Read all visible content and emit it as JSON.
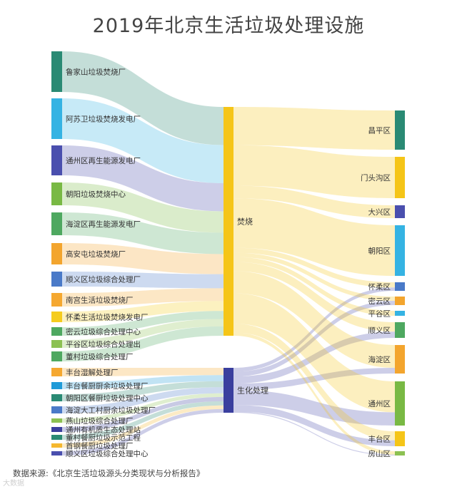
{
  "title": "2019年北京生活垃圾处理设施",
  "source": "数据来源:《北京生活垃圾源头分类现状与分析报告》",
  "watermark": "大数据",
  "chart_data": {
    "type": "sankey",
    "sources": [
      {
        "name": "鲁家山垃圾焚烧厂",
        "color": "#2a8a74"
      },
      {
        "name": "阿苏卫垃圾焚烧发电厂",
        "color": "#35b3e3"
      },
      {
        "name": "通州区再生能源发电厂",
        "color": "#4a4fae"
      },
      {
        "name": "朝阳垃圾焚烧中心",
        "color": "#79b944"
      },
      {
        "name": "海淀区再生能源发电厂",
        "color": "#4ea860"
      },
      {
        "name": "高安屯垃圾焚烧厂",
        "color": "#f3a52e"
      },
      {
        "name": "顺义区垃圾综合处理厂",
        "color": "#4a7ac8"
      },
      {
        "name": "南宫生活垃圾焚烧厂",
        "color": "#f5a830"
      },
      {
        "name": "怀柔生活垃圾焚烧发电厂",
        "color": "#f5cc1e"
      },
      {
        "name": "密云垃圾综合处理中心",
        "color": "#4ea860"
      },
      {
        "name": "平谷区垃圾综合处理出",
        "color": "#8cc152"
      },
      {
        "name": "董村垃圾综合处理厂",
        "color": "#4ea860"
      },
      {
        "name": "丰台湿解处理厂",
        "color": "#f5a830"
      },
      {
        "name": "丰台餐厨厨余垃圾处理厂",
        "color": "#1f9bd8"
      },
      {
        "name": "朝阳区餐厨垃圾处理中心",
        "color": "#2a8a74"
      },
      {
        "name": "海淀大工村厨余垃圾处理厂",
        "color": "#4a7ac8"
      },
      {
        "name": "燕山垃圾综合处理厂",
        "color": "#8cc152"
      },
      {
        "name": "通州有机质生态处理站",
        "color": "#3a3f9e"
      },
      {
        "name": "董村餐厨垃圾示范工程",
        "color": "#2a8a74"
      },
      {
        "name": "首钢餐厨垃圾处理厂",
        "color": "#f5b830"
      },
      {
        "name": "顺义区垃圾综合处理中心",
        "color": "#4a4fae"
      }
    ],
    "categories": [
      {
        "name": "焚烧",
        "color": "#f5c518"
      },
      {
        "name": "生化处理",
        "color": "#3a3f9e"
      }
    ],
    "districts": [
      {
        "name": "昌平区",
        "color": "#2a8a74"
      },
      {
        "name": "门头沟区",
        "color": "#f5c518"
      },
      {
        "name": "大兴区",
        "color": "#4a4fae"
      },
      {
        "name": "朝阳区",
        "color": "#35b3e3"
      },
      {
        "name": "怀柔区",
        "color": "#4a7ac8"
      },
      {
        "name": "密云区",
        "color": "#f3a52e"
      },
      {
        "name": "平谷区",
        "color": "#35b3e3"
      },
      {
        "name": "顺义区",
        "color": "#4ea860"
      },
      {
        "name": "海淀区",
        "color": "#f3a52e"
      },
      {
        "name": "通州区",
        "color": "#79b944"
      },
      {
        "name": "丰台区",
        "color": "#f5c518"
      },
      {
        "name": "房山区",
        "color": "#8cc152"
      }
    ]
  }
}
